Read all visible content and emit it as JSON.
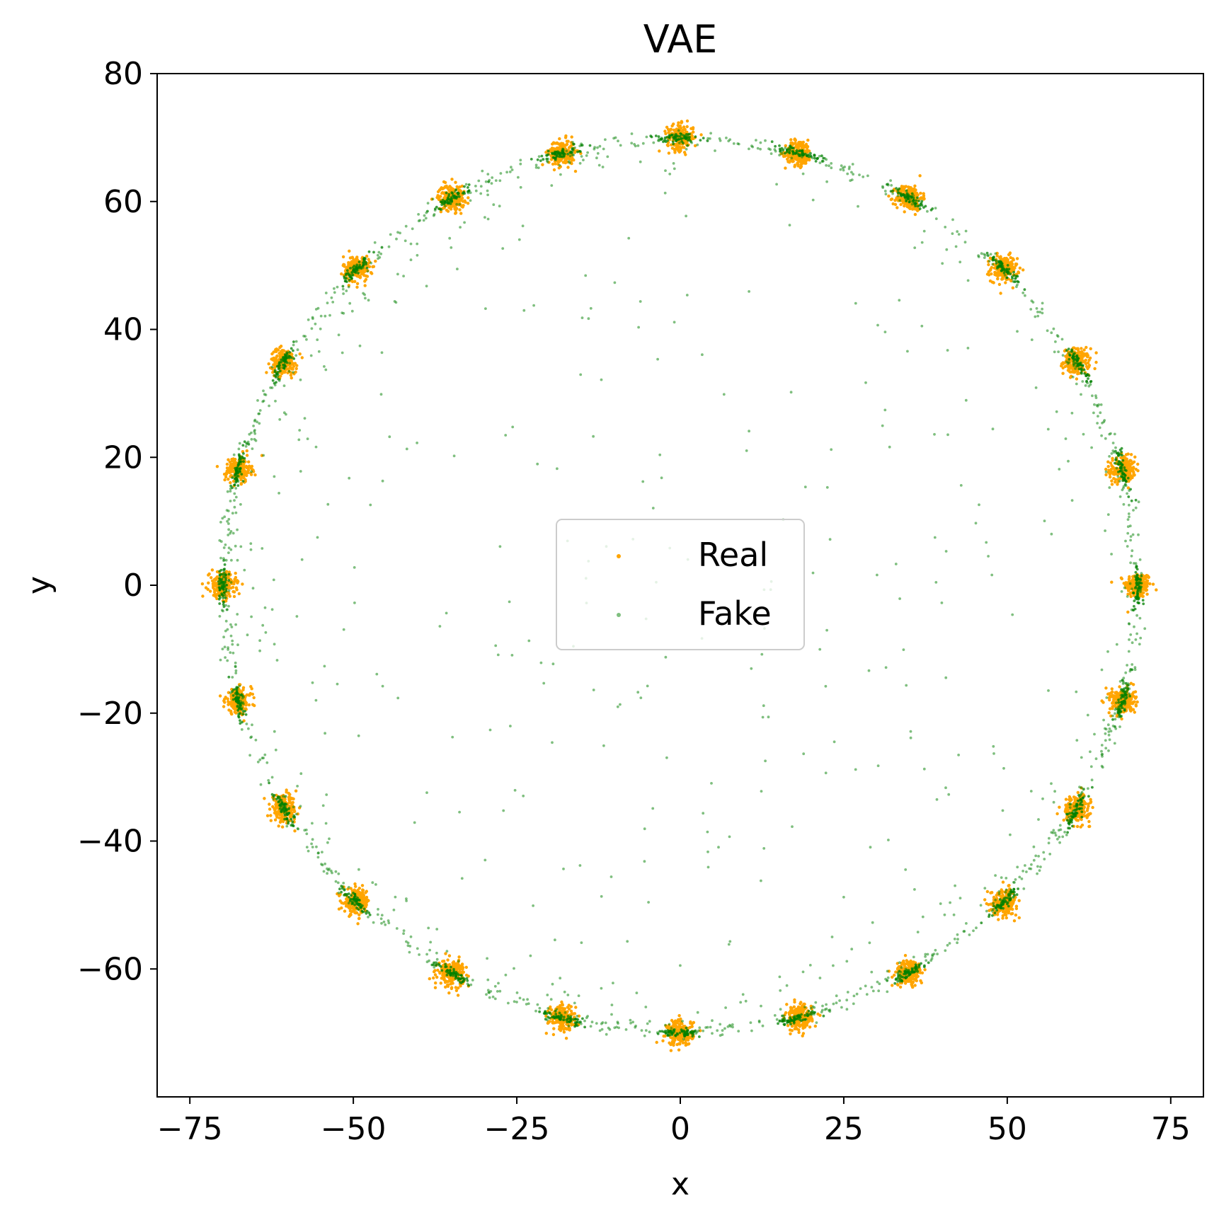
{
  "chart_data": {
    "type": "scatter",
    "title": "VAE",
    "xlabel": "x",
    "ylabel": "y",
    "xlim": [
      -80,
      80
    ],
    "ylim": [
      -80,
      80
    ],
    "xticks": [
      -75,
      -50,
      -25,
      0,
      25,
      50,
      75
    ],
    "yticks": [
      -60,
      -40,
      -20,
      0,
      20,
      40,
      60,
      80
    ],
    "xtick_labels": [
      "−75",
      "−50",
      "−25",
      "0",
      "25",
      "50",
      "75"
    ],
    "ytick_labels": [
      "−60",
      "−40",
      "−20",
      "0",
      "20",
      "40",
      "60",
      "80"
    ],
    "grid": false,
    "legend_position": "center",
    "series": [
      {
        "name": "Real",
        "color": "#ffa500",
        "description": "24 Gaussian clusters evenly spaced on a circle of radius 70",
        "cluster_centers": [
          [
            70.0,
            0.0
          ],
          [
            67.6,
            18.1
          ],
          [
            60.6,
            35.0
          ],
          [
            49.5,
            49.5
          ],
          [
            35.0,
            60.6
          ],
          [
            18.1,
            67.6
          ],
          [
            0.0,
            70.0
          ],
          [
            -18.1,
            67.6
          ],
          [
            -35.0,
            60.6
          ],
          [
            -49.5,
            49.5
          ],
          [
            -60.6,
            35.0
          ],
          [
            -67.6,
            18.1
          ],
          [
            -70.0,
            0.0
          ],
          [
            -67.6,
            -18.1
          ],
          [
            -60.6,
            -35.0
          ],
          [
            -49.5,
            -49.5
          ],
          [
            -35.0,
            -60.6
          ],
          [
            -18.1,
            -67.6
          ],
          [
            0.0,
            -70.0
          ],
          [
            18.1,
            -67.6
          ],
          [
            35.0,
            -60.6
          ],
          [
            49.5,
            -49.5
          ],
          [
            60.6,
            -35.0
          ],
          [
            67.6,
            -18.1
          ]
        ],
        "cluster_std": 1.0
      },
      {
        "name": "Fake",
        "color": "#008000",
        "description": "Samples concentrated near the 24 cluster centers and along the ring of radius 70, with sparse points inside the circle",
        "ring_radius": 70
      }
    ]
  }
}
